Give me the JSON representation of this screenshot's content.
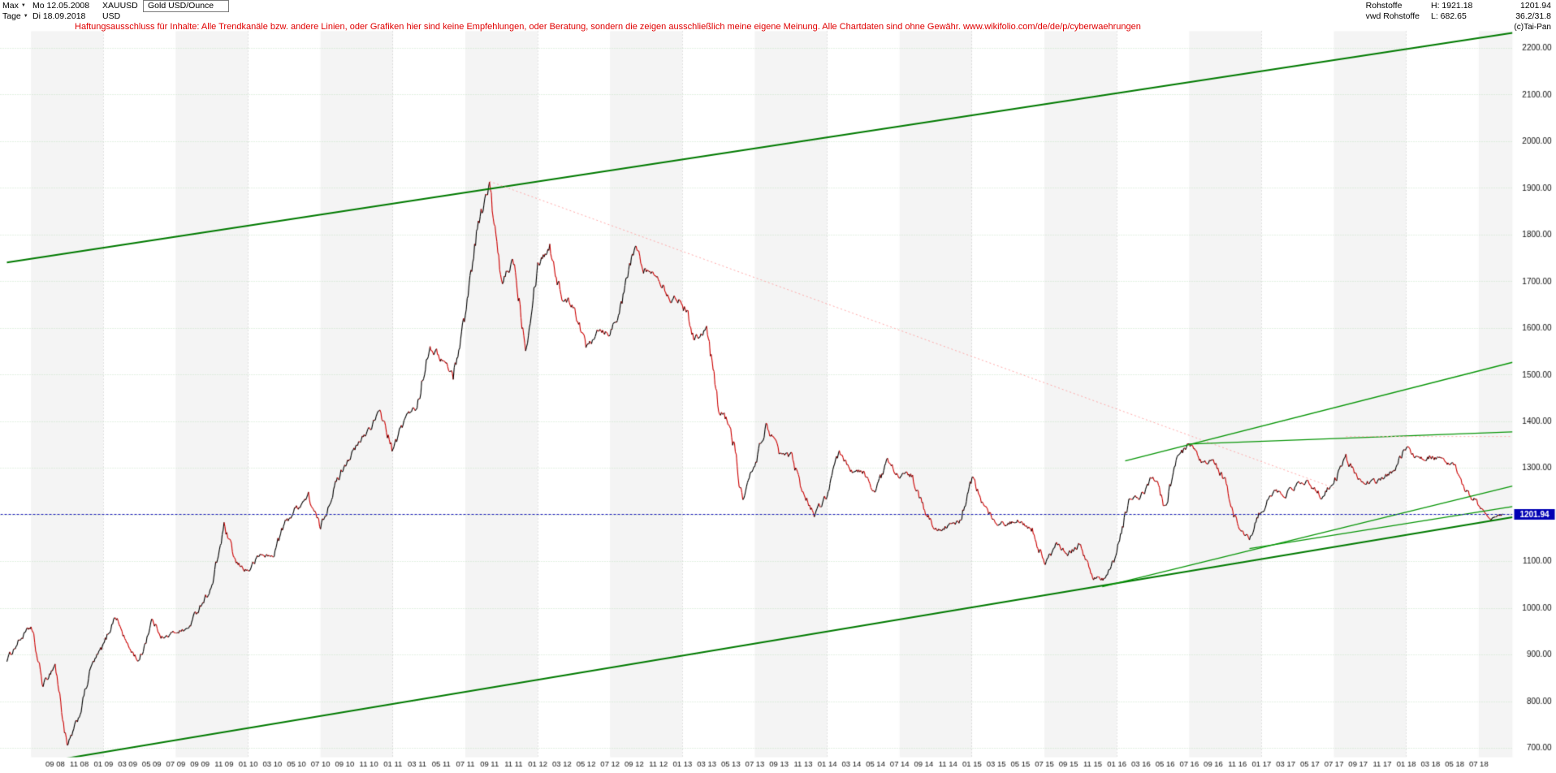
{
  "header": {
    "range_value": "Max",
    "start_date": "Mo 12.05.2008",
    "symbol": "XAUUSD",
    "instrument": "Gold USD/Ounce",
    "period_value": "Tage",
    "end_date": "Di 18.09.2018",
    "currency": "USD",
    "category": "Rohstoffe",
    "high": "H: 1921.18",
    "last": "1201.94",
    "feed": "vwd Rohstoffe",
    "low": "L: 682.65",
    "change": "36.2/31.8",
    "copyright": "(c)Tai-Pan",
    "disclaimer": "Haftungsausschluss für Inhalte: Alle Trendkanäle bzw. andere Linien, oder Grafiken hier sind keine Empfehlungen, oder Beratung, sondern die zeigen ausschließlich meine eigene Meinung. Alle Chartdaten sind ohne Gewähr.  www.wikifolio.com/de/de/p/cyberwaehrungen"
  },
  "icons": {
    "dropdown_arrow": "▼"
  },
  "chart_data": {
    "type": "line",
    "title": "Gold USD/Ounce",
    "symbol": "XAUUSD",
    "x_start": "2008-05",
    "x_end": "2018-09",
    "x_unit": "month",
    "high": 1921.18,
    "low": 682.65,
    "last": 1201.94,
    "ylim": [
      668,
      2244
    ],
    "y_ticks": [
      700,
      800,
      900,
      1000,
      1100,
      1200,
      1300,
      1400,
      1500,
      1600,
      1700,
      1800,
      1900,
      2000,
      2100,
      2200
    ],
    "x_first_tick_month": 4,
    "x_tick_step": 2,
    "x_tick_labels": [
      "09 08",
      "11 08",
      "01 09",
      "03 09",
      "05 09",
      "07 09",
      "09 09",
      "11 09",
      "01 10",
      "03 10",
      "05 10",
      "07 10",
      "09 10",
      "11 10",
      "01 11",
      "03 11",
      "05 11",
      "07 11",
      "09 11",
      "11 11",
      "01 12",
      "03 12",
      "05 12",
      "07 12",
      "09 12",
      "11 12",
      "01 13",
      "03 13",
      "05 13",
      "07 13",
      "09 13",
      "11 13",
      "01 14",
      "03 14",
      "05 14",
      "07 14",
      "09 14",
      "11 14",
      "01 15",
      "03 15",
      "05 15",
      "07 15",
      "09 15",
      "11 15",
      "01 16",
      "03 16",
      "05 16",
      "07 16",
      "09 16",
      "11 16",
      "01 17",
      "03 17",
      "05 17",
      "07 17",
      "09 17",
      "11 17",
      "01 18",
      "03 18",
      "05 18",
      "07 18"
    ],
    "values_monthly": [
      890,
      930,
      960,
      835,
      880,
      700,
      770,
      875,
      920,
      985,
      920,
      885,
      975,
      935,
      950,
      955,
      1005,
      1045,
      1175,
      1095,
      1080,
      1115,
      1110,
      1180,
      1215,
      1240,
      1170,
      1250,
      1310,
      1345,
      1385,
      1420,
      1335,
      1410,
      1430,
      1565,
      1535,
      1500,
      1630,
      1820,
      1905,
      1690,
      1750,
      1565,
      1740,
      1775,
      1665,
      1650,
      1560,
      1600,
      1590,
      1655,
      1775,
      1720,
      1715,
      1665,
      1660,
      1580,
      1600,
      1430,
      1390,
      1230,
      1310,
      1395,
      1330,
      1325,
      1250,
      1200,
      1245,
      1330,
      1295,
      1290,
      1250,
      1315,
      1285,
      1285,
      1210,
      1170,
      1175,
      1185,
      1280,
      1215,
      1185,
      1180,
      1190,
      1170,
      1095,
      1135,
      1115,
      1140,
      1065,
      1060,
      1115,
      1235,
      1235,
      1290,
      1215,
      1320,
      1350,
      1310,
      1315,
      1270,
      1175,
      1150,
      1210,
      1250,
      1245,
      1265,
      1270,
      1240,
      1270,
      1320,
      1280,
      1270,
      1275,
      1300,
      1345,
      1320,
      1325,
      1315,
      1300,
      1250,
      1220,
      1190,
      1201.94
    ],
    "trend_lines": [
      {
        "name": "channel-upper",
        "m1": 0,
        "p1": 1741,
        "m2": 124.8,
        "p2": 2233,
        "color": "#007a00",
        "width": 2,
        "dash": []
      },
      {
        "name": "channel-lower",
        "m1": 0,
        "p1": 657,
        "m2": 124.8,
        "p2": 1195,
        "color": "#007a00",
        "width": 2,
        "dash": []
      },
      {
        "name": "downtrend-from-2011-peak",
        "m1": 40,
        "p1": 1915,
        "m2": 110,
        "p2": 1258,
        "color": "#ffaaaa",
        "width": 1,
        "dash": [
          2,
          3
        ]
      },
      {
        "name": "resistance-2016-high",
        "m1": 98,
        "p1": 1352,
        "m2": 124.8,
        "p2": 1378,
        "color": "#089608",
        "width": 1.3,
        "dash": []
      },
      {
        "name": "resistance-pink-horizontal",
        "m1": 111,
        "p1": 1368,
        "m2": 124.8,
        "p2": 1368,
        "color": "#ffb4b4",
        "width": 1,
        "dash": [
          2,
          3
        ]
      },
      {
        "name": "fan-line-upper",
        "m1": 92.7,
        "p1": 1316,
        "m2": 124.8,
        "p2": 1527,
        "color": "#089608",
        "width": 1.3,
        "dash": []
      },
      {
        "name": "support-2015-low-steep",
        "m1": 90.8,
        "p1": 1046,
        "m2": 124.8,
        "p2": 1262,
        "color": "#089608",
        "width": 1.3,
        "dash": []
      },
      {
        "name": "support-2016-low",
        "m1": 103,
        "p1": 1128,
        "m2": 124.8,
        "p2": 1218,
        "color": "#089608",
        "width": 1.3,
        "dash": []
      }
    ],
    "current_price_line": 1201.94,
    "grid": {
      "horizontal_step": 100,
      "stripe_months": 6
    },
    "colors": {
      "up": "#000000",
      "down": "#cc0000",
      "grid_h": "#c9e3c9",
      "grid_v": "#c6c6c6",
      "stripe": "#f4f4f4",
      "current_line": "#2020bb",
      "badge_bg": "#0000b4",
      "badge_text": "#ffffff",
      "axis_text": "#111111"
    }
  }
}
